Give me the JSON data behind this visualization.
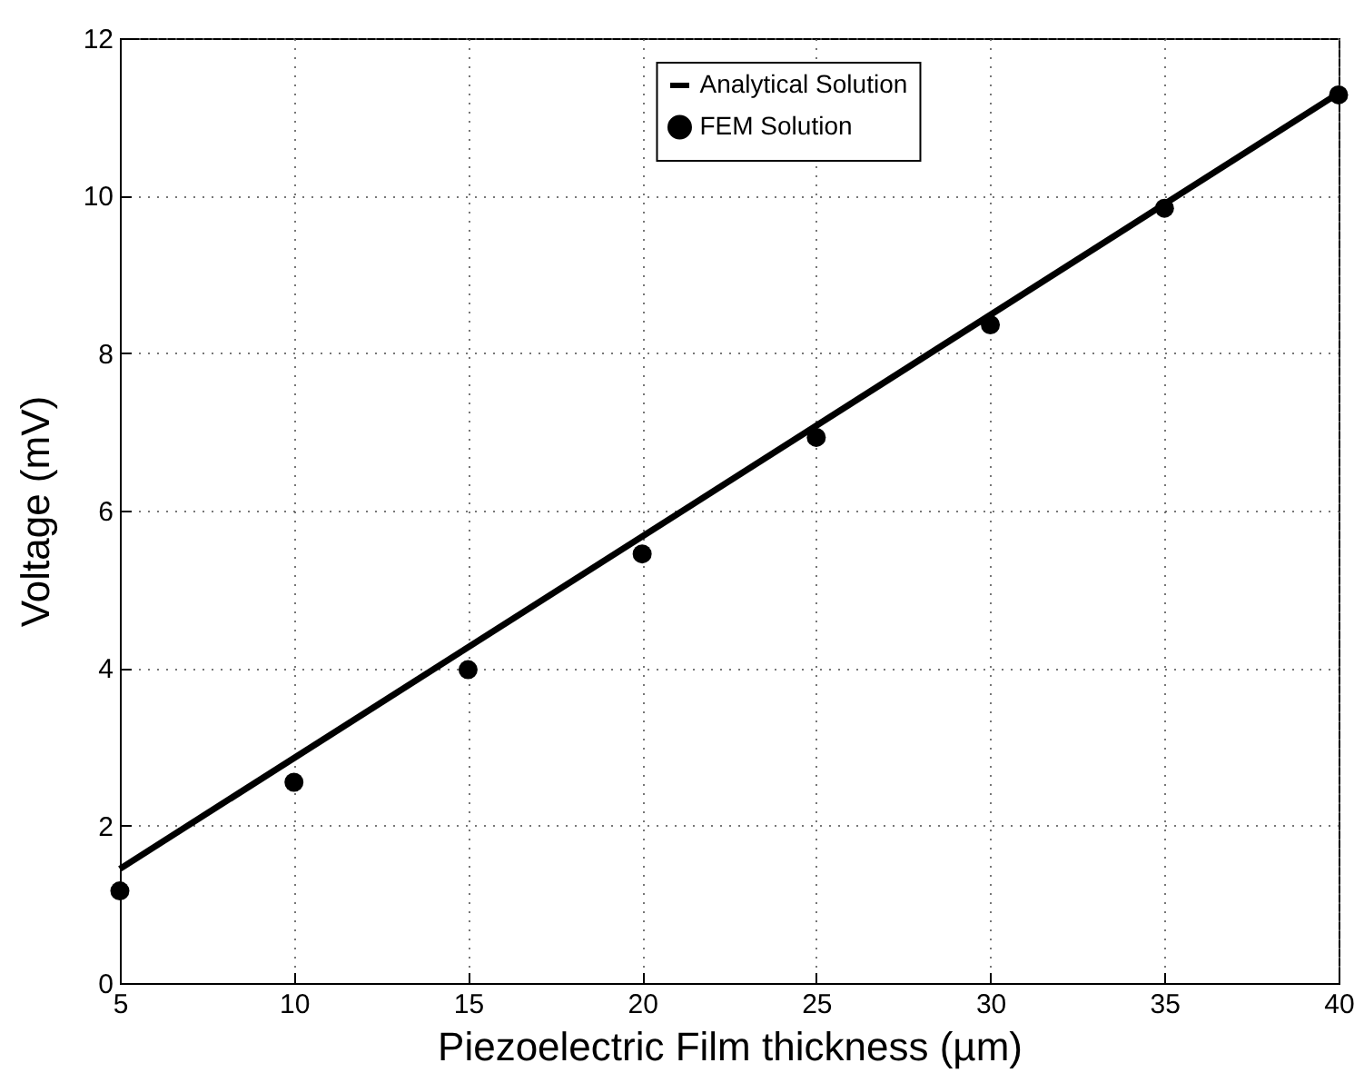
{
  "chart_data": {
    "type": "scatter",
    "xlabel": "Piezoelectric Film thickness (µm)",
    "ylabel": "Voltage (mV)",
    "xlim": [
      5,
      40
    ],
    "xticks": [
      5,
      10,
      15,
      20,
      25,
      30,
      35,
      40
    ],
    "ylim": [
      0,
      12
    ],
    "yticks": [
      0,
      2,
      4,
      6,
      8,
      10,
      12
    ],
    "grid": true,
    "legend": "top right",
    "series": [
      {
        "name": "Analytical Solution",
        "type": "line",
        "color": "#000000",
        "line_style": "solid",
        "x": [
          5,
          40
        ],
        "values": [
          1.45,
          11.3
        ]
      },
      {
        "name": "FEM Solution",
        "color": "#000000",
        "marker": "circle",
        "x": [
          5,
          10,
          15,
          20,
          25,
          30,
          35,
          40
        ],
        "values": [
          1.17,
          2.55,
          3.98,
          5.45,
          6.93,
          8.36,
          9.84,
          11.28
        ]
      }
    ]
  }
}
